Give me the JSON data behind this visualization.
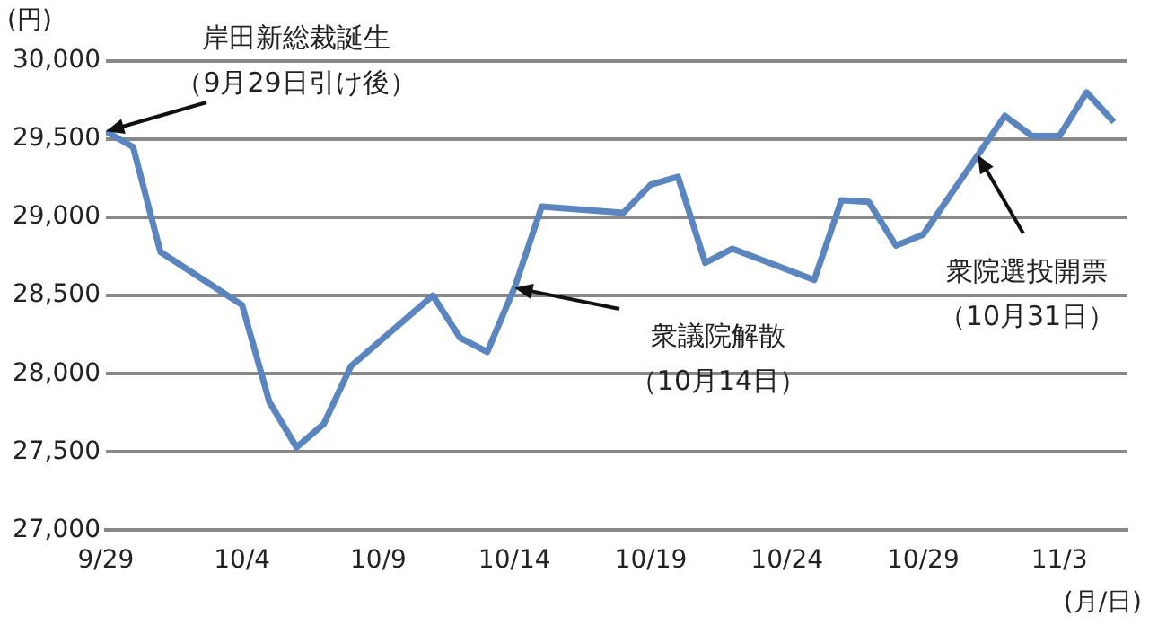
{
  "chart_data": {
    "type": "line",
    "ylabel": "(円)",
    "xlabel": "(月/日)",
    "x": [
      "--09-29",
      "--09-30",
      "--10-01",
      "--10-04",
      "--10-05",
      "--10-06",
      "--10-07",
      "--10-08",
      "--10-11",
      "--10-12",
      "--10-13",
      "--10-14",
      "--10-15",
      "--10-18",
      "--10-19",
      "--10-20",
      "--10-21",
      "--10-22",
      "--10-25",
      "--10-26",
      "--10-27",
      "--10-28",
      "--10-29",
      "--11-01",
      "--11-02",
      "--11-03",
      "--11-04",
      "--11-05"
    ],
    "series": [
      {
        "color": "#5a85bf",
        "values": [
          29550,
          29450,
          28780,
          28440,
          27820,
          27530,
          27680,
          28050,
          28500,
          28230,
          28140,
          28550,
          29070,
          29030,
          29210,
          29260,
          28710,
          28800,
          28600,
          29110,
          29100,
          28820,
          28890,
          29650,
          29520,
          29520,
          29800,
          29610
        ]
      }
    ],
    "xlim": [
      "--09-29",
      "--11-05T12:00"
    ],
    "xticks": [
      {
        "value": "--09-29",
        "label": "9/29"
      },
      {
        "value": "--10-04",
        "label": "10/4"
      },
      {
        "value": "--10-09",
        "label": "10/9"
      },
      {
        "value": "--10-14",
        "label": "10/14"
      },
      {
        "value": "--10-19",
        "label": "10/19"
      },
      {
        "value": "--10-24",
        "label": "10/24"
      },
      {
        "value": "--10-29",
        "label": "10/29"
      },
      {
        "value": "--11-03",
        "label": "11/3"
      }
    ],
    "ylim": [
      27000,
      30000
    ],
    "yticks": [
      {
        "value": 27000,
        "label": "27,000"
      },
      {
        "value": 27500,
        "label": "27,500"
      },
      {
        "value": 28000,
        "label": "28,000"
      },
      {
        "value": 28500,
        "label": "28,500"
      },
      {
        "value": 29000,
        "label": "29,000"
      },
      {
        "value": 29500,
        "label": "29,500"
      },
      {
        "value": 30000,
        "label": "30,000"
      }
    ],
    "grid": "y",
    "legend": false,
    "marker": "none",
    "line_style": "solid",
    "annotations": [
      "岸田新総裁誕生",
      {
        "text": "（9月29日引け後）",
        "x": "--09-29",
        "y": 29550
      },
      {
        "text": "衆議院解散",
        "x": "--10-14",
        "y": 28550
      },
      "（10月14日）",
      {
        "text": "衆院選投開票",
        "x": "--10-31",
        "y": 29400
      },
      "（10月31日）"
    ]
  }
}
